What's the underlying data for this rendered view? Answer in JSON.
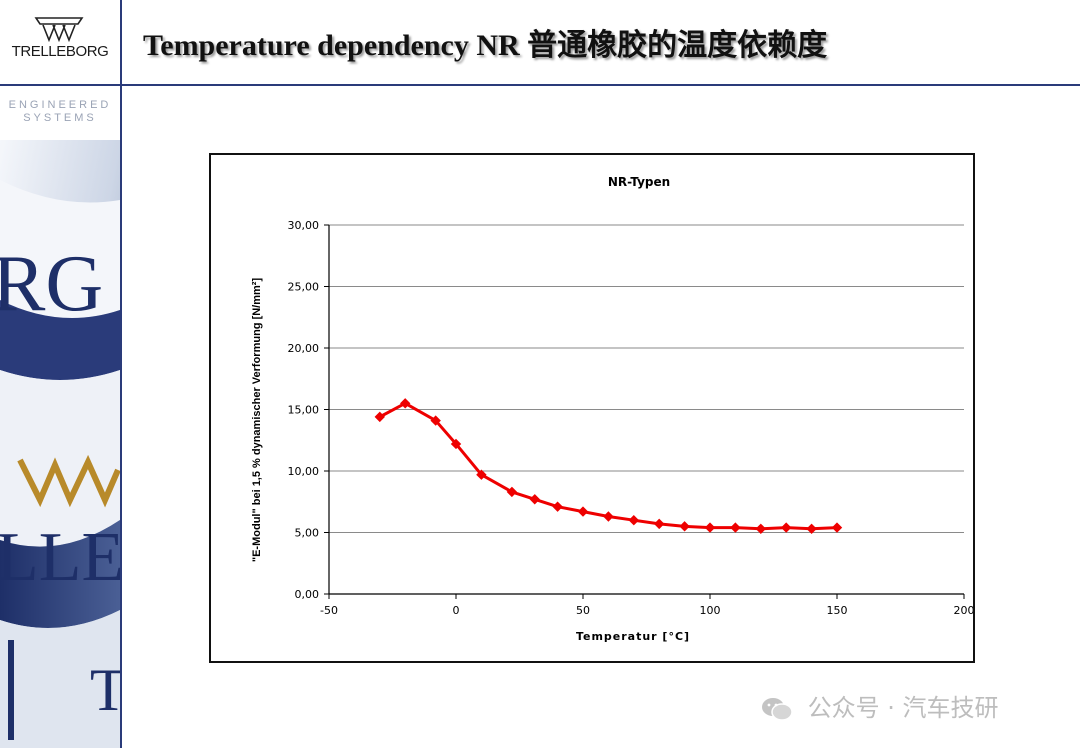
{
  "brand": {
    "name": "TRELLEBORG",
    "tagline_line1": "ENGINEERED",
    "tagline_line2": "SYSTEMS",
    "accent_color": "#2a3b7a"
  },
  "slide": {
    "title": "Temperature dependency NR  普通橡胶的温度依赖度"
  },
  "watermark": {
    "text": "公众号 · 汽车技研",
    "icon": "wechat-icon"
  },
  "chart_data": {
    "type": "line",
    "title": "NR-Typen",
    "xlabel": "Temperatur [°C]",
    "ylabel": "\"E-Modul\" bei 1,5 % dynamischer Verformung [N/mm²]",
    "xlim": [
      -50,
      200
    ],
    "ylim": [
      0,
      30
    ],
    "x_ticks": [
      "-50",
      "0",
      "50",
      "100",
      "150",
      "200"
    ],
    "y_ticks": [
      "0,00",
      "5,00",
      "10,00",
      "15,00",
      "20,00",
      "25,00",
      "30,00"
    ],
    "grid": "horizontal",
    "series": [
      {
        "color": "#ee0000",
        "x": [
          -30,
          -20,
          -8,
          0,
          10,
          22,
          31,
          40,
          50,
          60,
          70,
          80,
          90,
          100,
          110,
          120,
          130,
          140,
          150
        ],
        "y": [
          14.4,
          15.5,
          14.1,
          12.2,
          9.7,
          8.3,
          7.7,
          7.1,
          6.7,
          6.3,
          6.0,
          5.7,
          5.5,
          5.4,
          5.4,
          5.3,
          5.4,
          5.3,
          5.4
        ]
      }
    ]
  }
}
